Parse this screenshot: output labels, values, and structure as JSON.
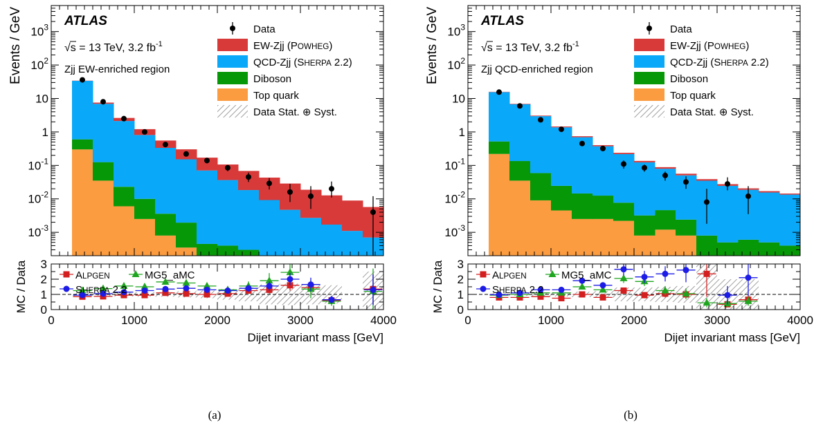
{
  "figure": {
    "left_caption": "(a)",
    "right_caption": "(b)"
  },
  "colors": {
    "ew": "#d83a3a",
    "qcd": "#0aa8f8",
    "diboson": "#079807",
    "top": "#fb9c40",
    "alpgen": "#d31f1f",
    "mg5": "#1fa51f",
    "sherpa": "#1c1ce6",
    "data": "#000000"
  },
  "chart_data": [
    {
      "type": "bar",
      "stacked": true,
      "yscale": "log",
      "atlas": "ATLAS",
      "energy_label": "√s = 13 TeV, 3.2 fb",
      "energy_sup": "-1",
      "region_label": "Zjj EW-enriched region",
      "ylabel": "Events / GeV",
      "ratio_ylabel": "MC / Data",
      "xlabel": "Dijet invariant mass [GeV]",
      "xlim": [
        0,
        4000
      ],
      "ylim": [
        0.0002,
        6000
      ],
      "ratio_ylim": [
        0,
        3
      ],
      "x_ticks": [
        "0",
        "1000",
        "2000",
        "3000",
        "4000"
      ],
      "y_ticks": [
        "10-3",
        "10-2",
        "10-1",
        "1",
        "10",
        "102",
        "103"
      ],
      "ratio_ticks": [
        "0",
        "1",
        "2",
        "3"
      ],
      "legend": [
        {
          "key": "data",
          "label": "Data"
        },
        {
          "key": "ew",
          "label": "EW-Zjj (POWHEG)"
        },
        {
          "key": "qcd",
          "label": "QCD-Zjj (SHERPA 2.2)"
        },
        {
          "key": "diboson",
          "label": "Diboson"
        },
        {
          "key": "top",
          "label": "Top quark"
        },
        {
          "key": "syst",
          "label": "Data Stat. ⊕ Syst."
        }
      ],
      "ratio_legend": [
        {
          "key": "alpgen",
          "label": "ALPGEN"
        },
        {
          "key": "mg5",
          "label": "MG5_aMC"
        },
        {
          "key": "sherpa",
          "label": "SHERPA 2.2"
        }
      ],
      "bin_edges": [
        250,
        500,
        750,
        1000,
        1250,
        1500,
        1750,
        2000,
        2250,
        2500,
        2750,
        3000,
        3250,
        3500,
        3750,
        4000
      ],
      "series": [
        {
          "name": "Top quark",
          "values": [
            0.3,
            0.035,
            0.006,
            0.0025,
            0.0008,
            0.00035,
            0.0002,
            0.0002,
            0.0002,
            0.0002,
            0.0002,
            0.0002,
            0.0002,
            0.0002,
            0.0002
          ]
        },
        {
          "name": "Diboson",
          "values": [
            0.3,
            0.09,
            0.017,
            0.0075,
            0.0028,
            0.0016,
            0.00025,
            0.0002,
            0.0001,
            0,
            0,
            0,
            0,
            0,
            0
          ]
        },
        {
          "name": "QCD-Zjj (SHERPA 2.2)",
          "values": [
            33,
            6.8,
            2.1,
            0.8,
            0.33,
            0.15,
            0.07,
            0.036,
            0.018,
            0.009,
            0.0045,
            0.0025,
            0.0015,
            0.0009,
            0.0005
          ]
        },
        {
          "name": "EW-Zjj (POWHEG)",
          "values": [
            0.5,
            0.6,
            0.5,
            0.4,
            0.22,
            0.15,
            0.1,
            0.07,
            0.05,
            0.034,
            0.024,
            0.016,
            0.011,
            0.0078,
            0.005
          ]
        }
      ],
      "data_points": {
        "x": [
          375,
          625,
          875,
          1125,
          1375,
          1625,
          1875,
          2125,
          2375,
          2625,
          2875,
          3125,
          3375,
          3875
        ],
        "y": [
          36,
          8,
          2.5,
          1.0,
          0.42,
          0.22,
          0.14,
          0.085,
          0.045,
          0.029,
          0.016,
          0.012,
          0.02,
          0.004
        ],
        "err_lo": [
          2,
          0.5,
          0.3,
          0.12,
          0.06,
          0.035,
          0.025,
          0.018,
          0.013,
          0.01,
          0.008,
          0.007,
          0.009,
          0.0038
        ],
        "err_hi": [
          2,
          0.5,
          0.3,
          0.12,
          0.06,
          0.035,
          0.025,
          0.018,
          0.016,
          0.013,
          0.012,
          0.012,
          0.013,
          0.008
        ]
      },
      "ratio_band": {
        "edges": [
          250,
          500,
          750,
          1000,
          1250,
          1500,
          1750,
          2000,
          2250,
          2500,
          2750,
          3000,
          3250,
          3500,
          3750,
          4000
        ],
        "lo": [
          0.9,
          0.87,
          0.86,
          0.85,
          0.85,
          0.8,
          0.75,
          0.65,
          0.55,
          0.35,
          0.3,
          0.35,
          0.4,
          1,
          0
        ],
        "hi": [
          1.1,
          1.13,
          1.14,
          1.15,
          1.15,
          1.2,
          1.25,
          1.35,
          1.45,
          1.65,
          1.7,
          1.65,
          1.6,
          1,
          2.5
        ]
      },
      "ratio_series": [
        {
          "name": "ALPGEN",
          "x": [
            375,
            625,
            875,
            1125,
            1375,
            1625,
            1875,
            2125,
            2375,
            2625,
            2875,
            3125,
            3375,
            3875
          ],
          "y": [
            0.85,
            0.87,
            0.95,
            0.95,
            1.1,
            1.05,
            1.0,
            1.05,
            1.25,
            1.3,
            1.6,
            1.45,
            0.6,
            1.35
          ],
          "err": [
            0.05,
            0.06,
            0.07,
            0.08,
            0.1,
            0.12,
            0.15,
            0.18,
            0.2,
            0.25,
            0.35,
            0.4,
            0.25,
            1.0
          ]
        },
        {
          "name": "MG5_aMC",
          "x": [
            375,
            625,
            875,
            1125,
            1375,
            1625,
            1875,
            2125,
            2375,
            2625,
            2875,
            3125,
            3375,
            3875
          ],
          "y": [
            1.25,
            1.38,
            1.55,
            1.5,
            1.82,
            1.75,
            1.55,
            1.3,
            1.55,
            1.9,
            2.45,
            1.35,
            0.55,
            1.2
          ],
          "err": [
            0.06,
            0.07,
            0.09,
            0.1,
            0.14,
            0.18,
            0.2,
            0.25,
            0.3,
            0.5,
            0.8,
            0.6,
            0.3,
            1.5
          ]
        },
        {
          "name": "SHERPA 2.2",
          "x": [
            375,
            625,
            875,
            1125,
            1375,
            1625,
            1875,
            2125,
            2375,
            2625,
            2875,
            3125,
            3375,
            3875
          ],
          "y": [
            0.95,
            1.05,
            1.15,
            1.25,
            1.35,
            1.4,
            1.3,
            1.25,
            1.4,
            1.55,
            2.0,
            1.65,
            0.65,
            1.3
          ],
          "err": [
            0.05,
            0.06,
            0.07,
            0.08,
            0.1,
            0.12,
            0.15,
            0.18,
            0.22,
            0.3,
            0.4,
            0.45,
            0.25,
            1.0
          ]
        }
      ]
    },
    {
      "type": "bar",
      "stacked": true,
      "yscale": "log",
      "atlas": "ATLAS",
      "energy_label": "√s = 13 TeV, 3.2 fb",
      "energy_sup": "-1",
      "region_label": "Zjj QCD-enriched region",
      "ylabel": "Events / GeV",
      "ratio_ylabel": "MC / Data",
      "xlabel": "Dijet invariant mass [GeV]",
      "xlim": [
        0,
        4000
      ],
      "ylim": [
        0.0002,
        6000
      ],
      "ratio_ylim": [
        0,
        3
      ],
      "x_ticks": [
        "0",
        "1000",
        "2000",
        "3000",
        "4000"
      ],
      "y_ticks": [
        "10-3",
        "10-2",
        "10-1",
        "1",
        "10",
        "102",
        "103"
      ],
      "ratio_ticks": [
        "0",
        "1",
        "2",
        "3"
      ],
      "legend": [
        {
          "key": "data",
          "label": "Data"
        },
        {
          "key": "ew",
          "label": "EW-Zjj (POWHEG)"
        },
        {
          "key": "qcd",
          "label": "QCD-Zjj (SHERPA 2.2)"
        },
        {
          "key": "diboson",
          "label": "Diboson"
        },
        {
          "key": "top",
          "label": "Top quark"
        },
        {
          "key": "syst",
          "label": "Data Stat. ⊕ Syst."
        }
      ],
      "ratio_legend": [
        {
          "key": "alpgen",
          "label": "ALPGEN"
        },
        {
          "key": "mg5",
          "label": "MG5_aMC"
        },
        {
          "key": "sherpa",
          "label": "SHERPA 2.2"
        }
      ],
      "bin_edges": [
        250,
        500,
        750,
        1000,
        1250,
        1500,
        1750,
        2000,
        2250,
        2500,
        2750,
        3000,
        3250,
        3500,
        3750,
        4000
      ],
      "series": [
        {
          "name": "Top quark",
          "values": [
            0.22,
            0.035,
            0.009,
            0.0045,
            0.0025,
            0.0025,
            0.0022,
            0.0008,
            0.0012,
            0.0008,
            0.0002,
            0.0002,
            0.0002,
            0.0002,
            0.0002
          ]
        },
        {
          "name": "Diboson",
          "values": [
            0.3,
            0.1,
            0.05,
            0.02,
            0.012,
            0.01,
            0.0055,
            0.0024,
            0.0034,
            0.0016,
            0.0006,
            0.0003,
            0.0004,
            0.0003,
            0.0002
          ]
        },
        {
          "name": "QCD-Zjj (SHERPA 2.2)",
          "values": [
            15,
            6.6,
            2.9,
            1.35,
            0.68,
            0.36,
            0.21,
            0.12,
            0.075,
            0.048,
            0.034,
            0.024,
            0.018,
            0.015,
            0.013
          ]
        },
        {
          "name": "EW-Zjj (POWHEG)",
          "values": [
            0.3,
            0.2,
            0.12,
            0.08,
            0.05,
            0.03,
            0.02,
            0.013,
            0.009,
            0.006,
            0.004,
            0.003,
            0.002,
            0.0015,
            0.001
          ]
        }
      ],
      "data_points": {
        "x": [
          375,
          625,
          875,
          1125,
          1375,
          1625,
          1875,
          2125,
          2375,
          2625,
          2875,
          3125,
          3375
        ],
        "y": [
          15.5,
          6,
          2.3,
          1.2,
          0.45,
          0.32,
          0.11,
          0.085,
          0.05,
          0.032,
          0.008,
          0.028,
          0.012
        ],
        "err_lo": [
          1,
          0.4,
          0.25,
          0.15,
          0.07,
          0.05,
          0.03,
          0.02,
          0.015,
          0.012,
          0.0062,
          0.01,
          0.0085
        ],
        "err_hi": [
          1,
          0.4,
          0.25,
          0.15,
          0.07,
          0.05,
          0.03,
          0.02,
          0.015,
          0.015,
          0.012,
          0.016,
          0.012
        ]
      },
      "ratio_band": {
        "edges": [
          250,
          500,
          750,
          1000,
          1250,
          1500,
          1750,
          2000,
          2250,
          2500,
          2750,
          3000,
          3250,
          3500
        ],
        "lo": [
          0.92,
          0.9,
          0.88,
          0.86,
          0.82,
          0.78,
          0.55,
          0.55,
          0.5,
          0.45,
          0.0,
          0.0,
          0.0
        ],
        "hi": [
          1.08,
          1.1,
          1.12,
          1.14,
          1.18,
          1.22,
          1.45,
          1.45,
          1.5,
          1.55,
          3.0,
          2.0,
          2.0
        ]
      },
      "ratio_series": [
        {
          "name": "ALPGEN",
          "x": [
            375,
            625,
            875,
            1125,
            1375,
            1625,
            1875,
            2125,
            2375,
            2625,
            2875,
            3125,
            3375
          ],
          "y": [
            0.8,
            0.8,
            0.85,
            0.75,
            1.0,
            0.8,
            1.25,
            0.95,
            1.05,
            1.0,
            2.35,
            0.35,
            0.65
          ],
          "err": [
            0.04,
            0.05,
            0.06,
            0.08,
            0.1,
            0.12,
            0.2,
            0.2,
            0.25,
            0.3,
            1.5,
            0.2,
            0.35
          ]
        },
        {
          "name": "MG5_aMC",
          "x": [
            375,
            625,
            875,
            1125,
            1375,
            1625,
            1875,
            2125,
            2375,
            2625,
            2875,
            3125,
            3375
          ],
          "y": [
            0.95,
            1.0,
            1.1,
            1.1,
            1.5,
            1.3,
            2.05,
            1.85,
            1.25,
            1.05,
            0.45,
            0.4,
            0.55
          ],
          "err": [
            0.05,
            0.06,
            0.07,
            0.1,
            0.15,
            0.15,
            0.3,
            0.3,
            0.3,
            0.35,
            0.3,
            0.25,
            0.3
          ]
        },
        {
          "name": "SHERPA 2.2",
          "x": [
            375,
            625,
            875,
            1125,
            1375,
            1625,
            1875,
            2125,
            2375,
            2625,
            3125,
            3375
          ],
          "y": [
            0.98,
            1.1,
            1.3,
            1.3,
            1.9,
            1.6,
            2.65,
            2.15,
            2.35,
            2.6,
            0.95,
            2.1
          ],
          "err": [
            0.05,
            0.06,
            0.08,
            0.1,
            0.15,
            0.2,
            0.4,
            0.4,
            0.5,
            0.8,
            0.6,
            1.2
          ]
        }
      ]
    }
  ]
}
